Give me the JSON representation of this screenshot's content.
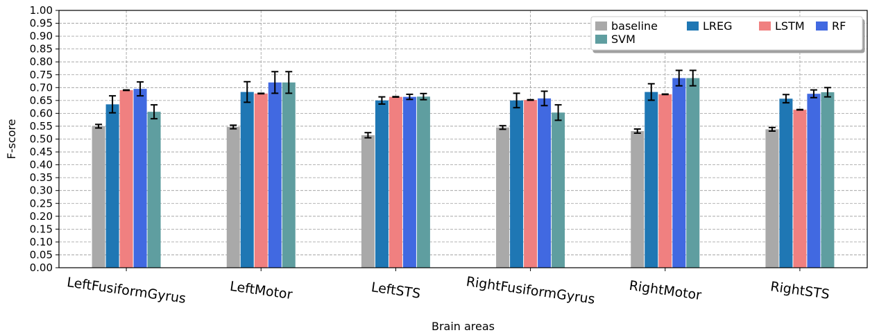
{
  "chart_data": {
    "type": "bar",
    "title": "",
    "xlabel": "Brain areas",
    "ylabel": "F-score",
    "ylim": [
      0,
      1.0
    ],
    "yticks": [
      "0.00",
      "0.05",
      "0.10",
      "0.15",
      "0.20",
      "0.25",
      "0.30",
      "0.35",
      "0.40",
      "0.45",
      "0.50",
      "0.55",
      "0.60",
      "0.65",
      "0.70",
      "0.75",
      "0.80",
      "0.85",
      "0.90",
      "0.95",
      "1.00"
    ],
    "grid": true,
    "legend_position": "top-right",
    "categories": [
      "LeftFusiformGyrus",
      "LeftMotor",
      "LeftSTS",
      "RightFusiformGyrus",
      "RightMotor",
      "RightSTS"
    ],
    "series": [
      {
        "name": "baseline",
        "color": "#a9a9a9",
        "values": [
          0.55,
          0.547,
          0.515,
          0.545,
          0.531,
          0.538
        ],
        "errors": [
          0.007,
          0.007,
          0.01,
          0.007,
          0.008,
          0.007
        ]
      },
      {
        "name": "LREG",
        "color": "#1f77b4",
        "values": [
          0.635,
          0.683,
          0.65,
          0.65,
          0.683,
          0.657
        ],
        "errors": [
          0.033,
          0.04,
          0.014,
          0.028,
          0.032,
          0.016
        ]
      },
      {
        "name": "LSTM",
        "color": "#f08080",
        "values": [
          0.69,
          0.677,
          0.664,
          0.652,
          0.674,
          0.614
        ],
        "errors": [
          0.001,
          0.001,
          0.001,
          0.001,
          0.001,
          0.001
        ]
      },
      {
        "name": "RF",
        "color": "#4169e1",
        "values": [
          0.695,
          0.72,
          0.664,
          0.658,
          0.737,
          0.676
        ],
        "errors": [
          0.027,
          0.042,
          0.01,
          0.028,
          0.03,
          0.015
        ]
      },
      {
        "name": "SVM",
        "color": "#5f9ea0",
        "values": [
          0.606,
          0.72,
          0.665,
          0.603,
          0.737,
          0.682
        ],
        "errors": [
          0.027,
          0.042,
          0.012,
          0.03,
          0.03,
          0.018
        ]
      }
    ]
  }
}
